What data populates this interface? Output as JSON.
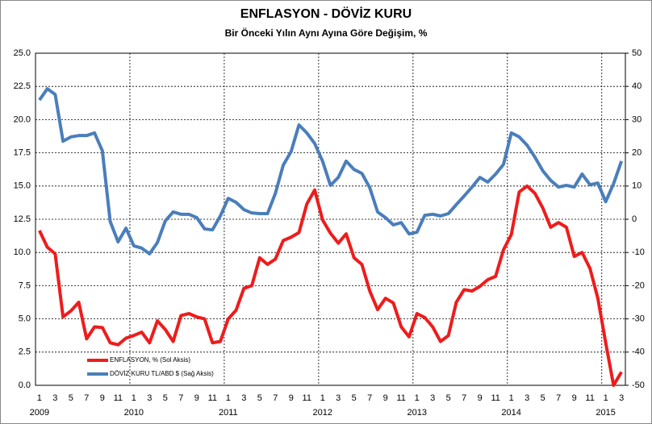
{
  "chart_data": {
    "type": "line",
    "title": "ENFLASYON - DÖVİZ KURU",
    "subtitle": "Bir Önceki Yılın Aynı Ayına Göre Değişim, %",
    "categories": [
      "1",
      null,
      "3",
      null,
      "5",
      null,
      "7",
      null,
      "9",
      null,
      "11",
      null,
      "1",
      null,
      "3",
      null,
      "5",
      null,
      "7",
      null,
      "9",
      null,
      "11",
      null,
      "1",
      null,
      "3",
      null,
      "5",
      null,
      "7",
      null,
      "9",
      null,
      "11",
      null,
      "1",
      null,
      "3",
      null,
      "5",
      null,
      "7",
      null,
      "9",
      null,
      "11",
      null,
      "1",
      null,
      "3",
      null,
      "5",
      null,
      "7",
      null,
      "9",
      null,
      "11",
      null,
      "1",
      null,
      "3",
      null,
      "5",
      null,
      "7",
      null,
      "9",
      null,
      "11",
      null,
      "1",
      null,
      "3"
    ],
    "years": [
      "2009",
      "2010",
      "2011",
      "2012",
      "2013",
      "2014",
      "2015"
    ],
    "series": [
      {
        "name": "ENFLASYON, % (Sol Aksis)",
        "color": "#ee1c1c",
        "axis": "y",
        "values": [
          11.65,
          10.4,
          9.9,
          5.15,
          5.6,
          6.25,
          3.5,
          4.4,
          4.35,
          3.2,
          3.05,
          3.55,
          3.75,
          4.0,
          3.2,
          4.85,
          4.2,
          3.3,
          5.25,
          5.4,
          5.15,
          5.0,
          3.2,
          3.3,
          5.0,
          5.65,
          7.3,
          7.5,
          9.6,
          9.1,
          9.5,
          10.9,
          11.15,
          11.5,
          13.65,
          14.7,
          12.45,
          11.45,
          10.7,
          11.4,
          9.6,
          9.1,
          7.1,
          5.7,
          6.55,
          6.2,
          4.4,
          3.65,
          5.4,
          5.1,
          4.4,
          3.3,
          3.75,
          6.25,
          7.2,
          7.1,
          7.45,
          7.95,
          8.2,
          10.2,
          11.35,
          14.55,
          15.0,
          14.45,
          13.35,
          11.9,
          12.25,
          11.9,
          9.7,
          10.0,
          8.8,
          6.55,
          3.2,
          0.0,
          1.0
        ]
      },
      {
        "name": "DÖVİZ KURU TL/ABD $ (Sağ Aksis)",
        "color": "#4a7ebb",
        "axis": "y2",
        "values": [
          35.9,
          39.3,
          37.6,
          23.5,
          24.8,
          25.2,
          25.2,
          26.0,
          20.6,
          -0.7,
          -6.8,
          -2.7,
          -8.0,
          -8.7,
          -10.4,
          -7.0,
          -0.5,
          2.2,
          1.5,
          1.5,
          0.5,
          -2.9,
          -3.2,
          1.0,
          6.3,
          5.1,
          2.9,
          1.9,
          1.7,
          1.7,
          7.8,
          16.3,
          20.4,
          28.4,
          26.0,
          22.8,
          17.5,
          10.2,
          12.6,
          17.5,
          15.0,
          13.8,
          9.5,
          2.2,
          0.5,
          -1.7,
          -1.0,
          -4.4,
          -3.9,
          1.2,
          1.5,
          1.0,
          1.7,
          4.4,
          7.0,
          9.7,
          12.6,
          11.2,
          13.6,
          16.5,
          26.0,
          24.8,
          22.3,
          18.7,
          14.6,
          11.7,
          9.7,
          10.2,
          9.7,
          13.6,
          10.4,
          10.9,
          5.3,
          10.7,
          17.5
        ]
      }
    ],
    "ylim": [
      0,
      25
    ],
    "yticks": [
      {
        "value": 0,
        "label": "0.0"
      },
      2.5,
      {
        "value": 5,
        "label": "5.0"
      },
      7.5,
      {
        "value": 10,
        "label": "10.0"
      },
      12.5,
      {
        "value": 15,
        "label": "15.0"
      },
      17.5,
      {
        "value": 20,
        "label": "20.0"
      },
      22.5,
      {
        "value": 25,
        "label": "25.0"
      }
    ],
    "y2lim": [
      -50,
      50
    ],
    "y2ticks": [
      -50,
      -40,
      -30,
      -20,
      -10,
      0,
      10,
      20,
      30,
      40,
      50
    ],
    "grid": true,
    "legend": "lower left"
  }
}
